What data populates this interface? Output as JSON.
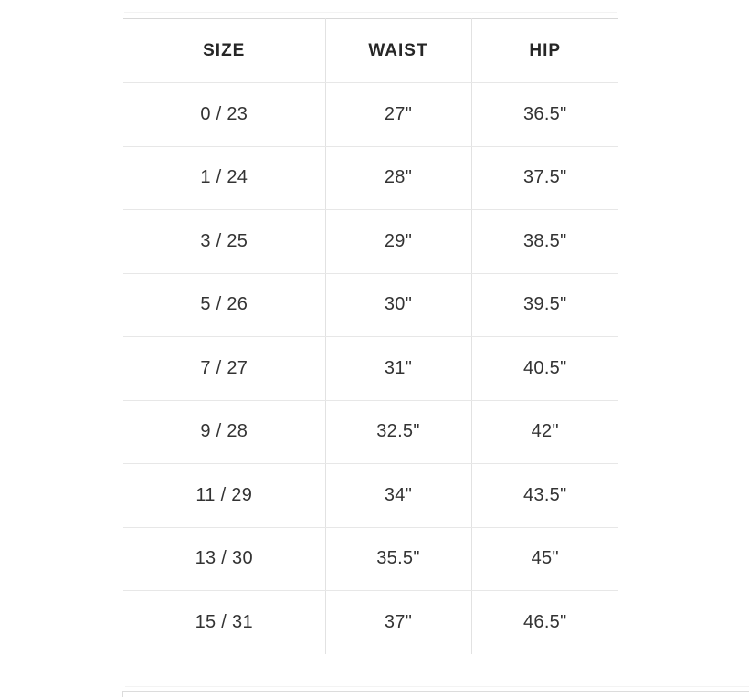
{
  "size_chart": {
    "columns": [
      "SIZE",
      "WAIST",
      "HIP"
    ],
    "rows": [
      [
        "0 / 23",
        "27\"",
        "36.5\""
      ],
      [
        "1 / 24",
        "28\"",
        "37.5\""
      ],
      [
        "3 / 25",
        "29\"",
        "38.5\""
      ],
      [
        "5 / 26",
        "30\"",
        "39.5\""
      ],
      [
        "7 / 27",
        "31\"",
        "40.5\""
      ],
      [
        "9 / 28",
        "32.5\"",
        "42\""
      ],
      [
        "11 / 29",
        "34\"",
        "43.5\""
      ],
      [
        "13 / 30",
        "35.5\"",
        "45\""
      ],
      [
        "15 / 31",
        "37\"",
        "46.5\""
      ]
    ]
  },
  "colors": {
    "background": "#ffffff",
    "header_text": "#262626",
    "body_text": "#333333",
    "table_top_border": "#d8d8d8",
    "row_divider": "#e7e7e7",
    "column_divider": "#e2e2e2",
    "faint_rule": "#f3f3f3",
    "next_section_border": "#dcdcdc"
  }
}
